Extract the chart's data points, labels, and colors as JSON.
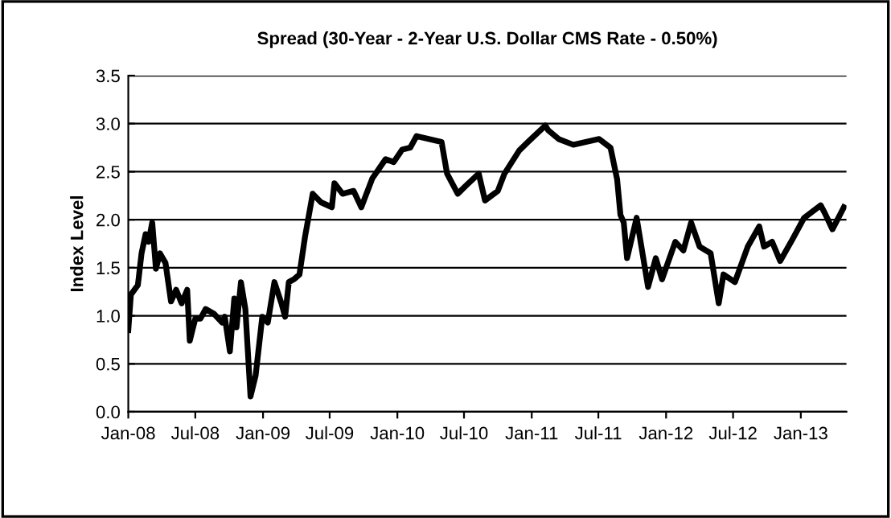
{
  "chart_data": {
    "type": "line",
    "title": "Spread (30-Year - 2-Year U.S. Dollar CMS Rate - 0.50%)",
    "ylabel": "Index Level",
    "x": [
      "2008-01-01",
      "2008-01-08",
      "2008-01-27",
      "2008-02-06",
      "2008-02-17",
      "2008-02-25",
      "2008-03-06",
      "2008-03-16",
      "2008-03-27",
      "2008-04-11",
      "2008-04-26",
      "2008-05-10",
      "2008-05-25",
      "2008-06-09",
      "2008-06-16",
      "2008-07-01",
      "2008-07-15",
      "2008-07-29",
      "2008-08-21",
      "2008-09-12",
      "2008-09-19",
      "2008-10-03",
      "2008-10-15",
      "2008-10-21",
      "2008-11-02",
      "2008-11-14",
      "2008-11-28",
      "2008-12-12",
      "2008-12-30",
      "2009-01-14",
      "2009-02-01",
      "2009-02-20",
      "2009-03-02",
      "2009-03-12",
      "2009-03-26",
      "2009-04-10",
      "2009-04-25",
      "2009-05-16",
      "2009-06-08",
      "2009-07-07",
      "2009-07-14",
      "2009-08-05",
      "2009-09-04",
      "2009-09-25",
      "2009-10-25",
      "2009-11-30",
      "2009-12-22",
      "2010-01-14",
      "2010-02-05",
      "2010-02-22",
      "2010-05-01",
      "2010-05-16",
      "2010-06-14",
      "2010-07-05",
      "2010-08-10",
      "2010-08-27",
      "2010-10-01",
      "2010-10-19",
      "2010-11-28",
      "2010-12-22",
      "2011-02-07",
      "2011-02-15",
      "2011-03-15",
      "2011-04-24",
      "2011-07-03",
      "2011-08-03",
      "2011-08-21",
      "2011-08-30",
      "2011-09-08",
      "2011-09-17",
      "2011-10-13",
      "2011-11-13",
      "2011-12-04",
      "2011-12-21",
      "2012-01-26",
      "2012-02-17",
      "2012-03-09",
      "2012-04-01",
      "2012-05-01",
      "2012-05-23",
      "2012-06-05",
      "2012-07-06",
      "2012-08-10",
      "2012-09-10",
      "2012-09-23",
      "2012-10-15",
      "2012-11-06",
      "2012-12-10",
      "2013-01-10",
      "2013-02-24",
      "2013-03-07",
      "2013-03-28",
      "2013-04-28"
    ],
    "series": [
      {
        "color": "#000000",
        "values": [
          0.85,
          1.22,
          1.32,
          1.65,
          1.85,
          1.77,
          1.97,
          1.49,
          1.65,
          1.55,
          1.15,
          1.27,
          1.13,
          1.27,
          0.74,
          0.97,
          0.97,
          1.07,
          1.02,
          0.93,
          0.99,
          0.63,
          1.18,
          0.88,
          1.35,
          1.07,
          0.16,
          0.38,
          0.99,
          0.93,
          1.35,
          1.13,
          0.99,
          1.35,
          1.38,
          1.43,
          1.82,
          2.27,
          2.18,
          2.13,
          2.38,
          2.27,
          2.3,
          2.13,
          2.43,
          2.63,
          2.6,
          2.73,
          2.75,
          2.87,
          2.81,
          2.48,
          2.27,
          2.35,
          2.48,
          2.2,
          2.3,
          2.48,
          2.72,
          2.81,
          2.98,
          2.93,
          2.84,
          2.78,
          2.84,
          2.75,
          2.42,
          2.05,
          1.97,
          1.6,
          2.02,
          1.3,
          1.6,
          1.38,
          1.77,
          1.68,
          1.97,
          1.72,
          1.65,
          1.13,
          1.43,
          1.35,
          1.72,
          1.93,
          1.72,
          1.77,
          1.57,
          1.8,
          2.02,
          2.15,
          2.07,
          1.9,
          2.13
        ]
      }
    ],
    "xlim": [
      "2008-01-01",
      "2013-05-05"
    ],
    "xticks": [
      {
        "value": "2008-01-01",
        "label": "Jan-08"
      },
      {
        "value": "2008-07-01",
        "label": "Jul-08"
      },
      {
        "value": "2009-01-01",
        "label": "Jan-09"
      },
      {
        "value": "2009-07-01",
        "label": "Jul-09"
      },
      {
        "value": "2010-01-01",
        "label": "Jan-10"
      },
      {
        "value": "2010-07-01",
        "label": "Jul-10"
      },
      {
        "value": "2011-01-01",
        "label": "Jan-11"
      },
      {
        "value": "2011-07-01",
        "label": "Jul-11"
      },
      {
        "value": "2012-01-01",
        "label": "Jan-12"
      },
      {
        "value": "2012-07-01",
        "label": "Jul-12"
      },
      {
        "value": "2013-01-01",
        "label": "Jan-13"
      }
    ],
    "ylim": [
      0,
      3.5
    ],
    "yticks": [
      {
        "value": 0,
        "label": "0.0"
      },
      {
        "value": 0.5,
        "label": "0.5"
      },
      {
        "value": 1,
        "label": "1.0"
      },
      {
        "value": 1.5,
        "label": "1.5"
      },
      {
        "value": 2,
        "label": "2.0"
      },
      {
        "value": 2.5,
        "label": "2.5"
      },
      {
        "value": 3,
        "label": "3.0"
      },
      {
        "value": 3.5,
        "label": "3.5"
      }
    ],
    "grid": "y",
    "legend": false,
    "line_style": "solid",
    "marker": "none"
  }
}
